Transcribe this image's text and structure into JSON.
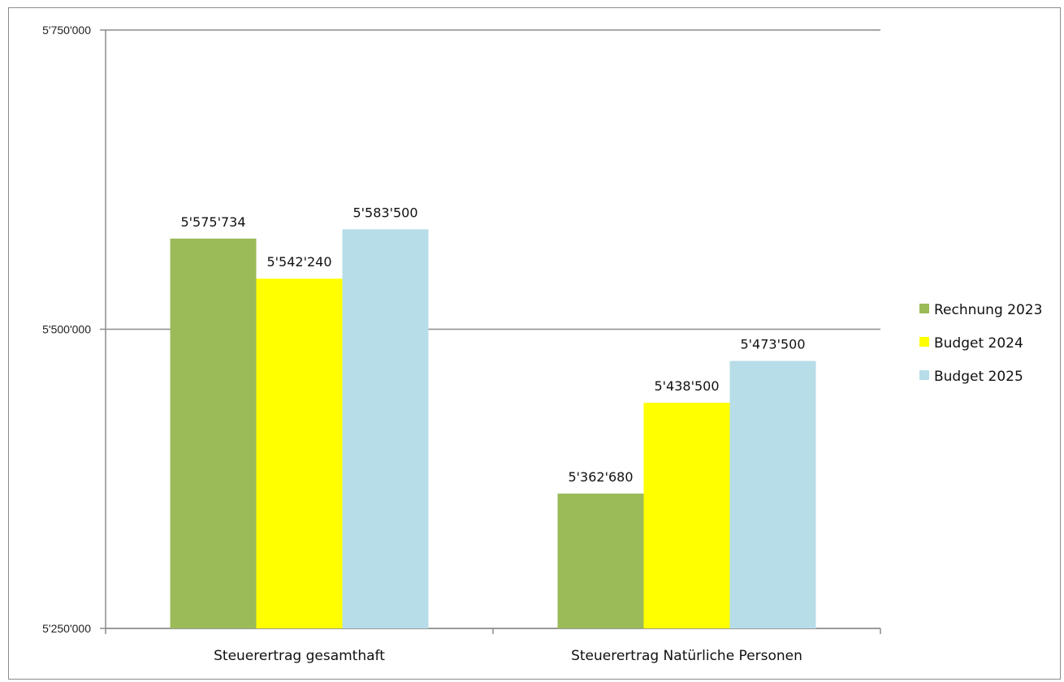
{
  "chart_data": {
    "type": "bar",
    "categories": [
      "Steuerertrag gesamthaft",
      "Steuerertrag Natürliche Personen"
    ],
    "series": [
      {
        "name": "Rechnung 2023",
        "color": "#9bbb59",
        "values": [
          5575734,
          5362680
        ],
        "labels": [
          "5'575'734",
          "5'362'680"
        ]
      },
      {
        "name": "Budget 2024",
        "color": "#ffff00",
        "values": [
          5542240,
          5438500
        ],
        "labels": [
          "5'542'240",
          "5'438'500"
        ]
      },
      {
        "name": "Budget 2025",
        "color": "#b7dde8",
        "values": [
          5583500,
          5473500
        ],
        "labels": [
          "5'583'500",
          "5'473'500"
        ]
      }
    ],
    "ylim": [
      5250000,
      5750000
    ],
    "yticks": [
      5250000,
      5500000,
      5750000
    ],
    "ytick_labels": [
      "5'250'000",
      "5'500'000",
      "5'750'000"
    ],
    "grid": true,
    "legend_position": "right",
    "title": "",
    "xlabel": "",
    "ylabel": ""
  }
}
